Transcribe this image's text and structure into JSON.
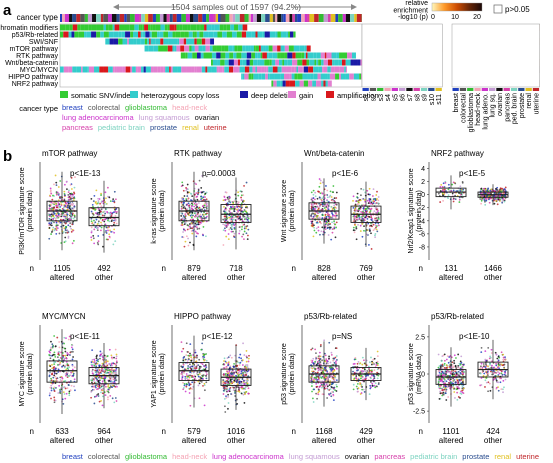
{
  "panel_a": {
    "label": "a",
    "samples_note": "1504 samples out of 1597 (94.2%)",
    "cancer_type_row_label": "cancer type",
    "pathways": [
      "Chromatin modifiers",
      "p53/Rb-related",
      "SWI/SNF",
      "mTOR pathway",
      "RTK pathway",
      "Wnt/beta-catenin",
      "MYC/MYCN",
      "HIPPO pathway",
      "NRF2 pathway"
    ],
    "alteration_legend": [
      {
        "label": "somatic SNV/indel",
        "color": "#33cc33"
      },
      {
        "label": "heterozygous copy loss",
        "color": "#33cccc"
      },
      {
        "label": "deep deletion",
        "color": "#1a1aa6"
      },
      {
        "label": "gain",
        "color": "#e27fd0"
      },
      {
        "label": "amplification",
        "color": "#d9181c"
      }
    ],
    "cancer_type_legend_title": "cancer type",
    "cancer_types": [
      {
        "name": "breast",
        "color": "#1f3fbf"
      },
      {
        "name": "colorectal",
        "color": "#555555"
      },
      {
        "name": "glioblastoma",
        "color": "#33bb33"
      },
      {
        "name": "head-neck",
        "color": "#f4a3b4"
      },
      {
        "name": "lung adenocarcinoma",
        "color": "#cc33cc"
      },
      {
        "name": "lung squamous",
        "color": "#c39bd3"
      },
      {
        "name": "ovarian",
        "color": "#111111"
      },
      {
        "name": "pancreas",
        "color": "#d63faa"
      },
      {
        "name": "pediatric brain",
        "color": "#7dd3c0"
      },
      {
        "name": "prostate",
        "color": "#2a4d8f"
      },
      {
        "name": "renal",
        "color": "#e0c020"
      },
      {
        "name": "uterine",
        "color": "#c0262b"
      }
    ],
    "enrichment_title": "relative\nenrichment",
    "enrichment_scale_label": "-log10 (p)",
    "enrichment_ticks": [
      "0",
      "10",
      "20"
    ],
    "ns_legend": "p>0.05",
    "subtypes": [
      "s1",
      "s2",
      "s3",
      "s4",
      "s5",
      "s6",
      "s7",
      "s8",
      "s9",
      "s10",
      "s11"
    ],
    "tissue_labels": [
      "breast",
      "colorectal",
      "glioblastoma",
      "head-neck",
      "lung adeno.",
      "lung sq.",
      "ovarian",
      "pancreas",
      "ped. brain",
      "prostate",
      "renal",
      "uterine"
    ]
  },
  "panel_b": {
    "label": "b",
    "n_label": "n",
    "chart_data": [
      {
        "type": "box",
        "title": "mTOR pathway",
        "ylabel": "PI3K/mTOR signature score\n(protein data)",
        "ylim": [
          -3,
          3
        ],
        "yticks": [],
        "pvalue": "p<1E-13",
        "groups": [
          {
            "name": "altered",
            "n": "1105",
            "median": 0.0,
            "q1": -0.6,
            "q3": 0.6
          },
          {
            "name": "other",
            "n": "492",
            "median": -0.4,
            "q1": -0.9,
            "q3": 0.2
          }
        ]
      },
      {
        "type": "box",
        "title": "RTK pathway",
        "ylabel": "k-ras signature score\n(protein data)",
        "ylim": [
          -3,
          3
        ],
        "yticks": [],
        "pvalue": "p=0.0003",
        "groups": [
          {
            "name": "altered",
            "n": "879",
            "median": 0.0,
            "q1": -0.6,
            "q3": 0.6
          },
          {
            "name": "other",
            "n": "718",
            "median": -0.2,
            "q1": -0.7,
            "q3": 0.4
          }
        ]
      },
      {
        "type": "box",
        "title": "Wnt/beta-catenin",
        "ylabel": "Wnt signature score\n(protein data)",
        "ylim": [
          -3,
          3
        ],
        "yticks": [],
        "pvalue": "p<1E-6",
        "groups": [
          {
            "name": "altered",
            "n": "828",
            "median": 0.0,
            "q1": -0.5,
            "q3": 0.5
          },
          {
            "name": "other",
            "n": "769",
            "median": -0.2,
            "q1": -0.7,
            "q3": 0.3
          }
        ]
      },
      {
        "type": "box",
        "title": "NRF2 pathway",
        "ylabel": "Nrf2/Keap1 signature score\n(protein data)",
        "ylim": [
          -10,
          5
        ],
        "yticks": [
          "4",
          "2",
          "0",
          "-2",
          "-4",
          "-6",
          "-8"
        ],
        "pvalue": "p<1E-5",
        "groups": [
          {
            "name": "altered",
            "n": "131",
            "median": 0.4,
            "q1": -0.3,
            "q3": 1.0
          },
          {
            "name": "other",
            "n": "1466",
            "median": 0.0,
            "q1": -0.4,
            "q3": 0.4
          }
        ]
      },
      {
        "type": "box",
        "title": "MYC/MYCN",
        "ylabel": "MYC signature score\n(protein data)",
        "ylim": [
          -3,
          3
        ],
        "yticks": [],
        "pvalue": "p<1E-11",
        "groups": [
          {
            "name": "altered",
            "n": "633",
            "median": 0.2,
            "q1": -0.5,
            "q3": 0.8
          },
          {
            "name": "other",
            "n": "964",
            "median": -0.1,
            "q1": -0.6,
            "q3": 0.4
          }
        ]
      },
      {
        "type": "box",
        "title": "HIPPO pathway",
        "ylabel": "YAP1 signature score\n(protein data)",
        "ylim": [
          -3,
          3
        ],
        "yticks": [],
        "pvalue": "p<1E-12",
        "groups": [
          {
            "name": "altered",
            "n": "579",
            "median": 0.2,
            "q1": -0.4,
            "q3": 0.7
          },
          {
            "name": "other",
            "n": "1016",
            "median": -0.2,
            "q1": -0.7,
            "q3": 0.3
          }
        ]
      },
      {
        "type": "box",
        "title": "p53/Rb-related",
        "ylabel": "p53 signature score\n(protein data)",
        "ylim": [
          -3,
          3
        ],
        "yticks": [],
        "pvalue": "p=NS",
        "groups": [
          {
            "name": "altered",
            "n": "1168",
            "median": 0.0,
            "q1": -0.5,
            "q3": 0.5
          },
          {
            "name": "other",
            "n": "429",
            "median": 0.0,
            "q1": -0.4,
            "q3": 0.4
          }
        ]
      },
      {
        "type": "box",
        "title": "p53/Rb-related",
        "ylabel": "p53 signature score\n(mRNA data)",
        "ylim": [
          -3.3,
          3.3
        ],
        "yticks": [
          "2.5",
          "0",
          "-2.5"
        ],
        "pvalue": "p<1E-10",
        "groups": [
          {
            "name": "altered",
            "n": "1101",
            "median": -0.2,
            "q1": -0.7,
            "q3": 0.3
          },
          {
            "name": "other",
            "n": "424",
            "median": 0.3,
            "q1": -0.2,
            "q3": 0.8
          }
        ]
      }
    ]
  }
}
